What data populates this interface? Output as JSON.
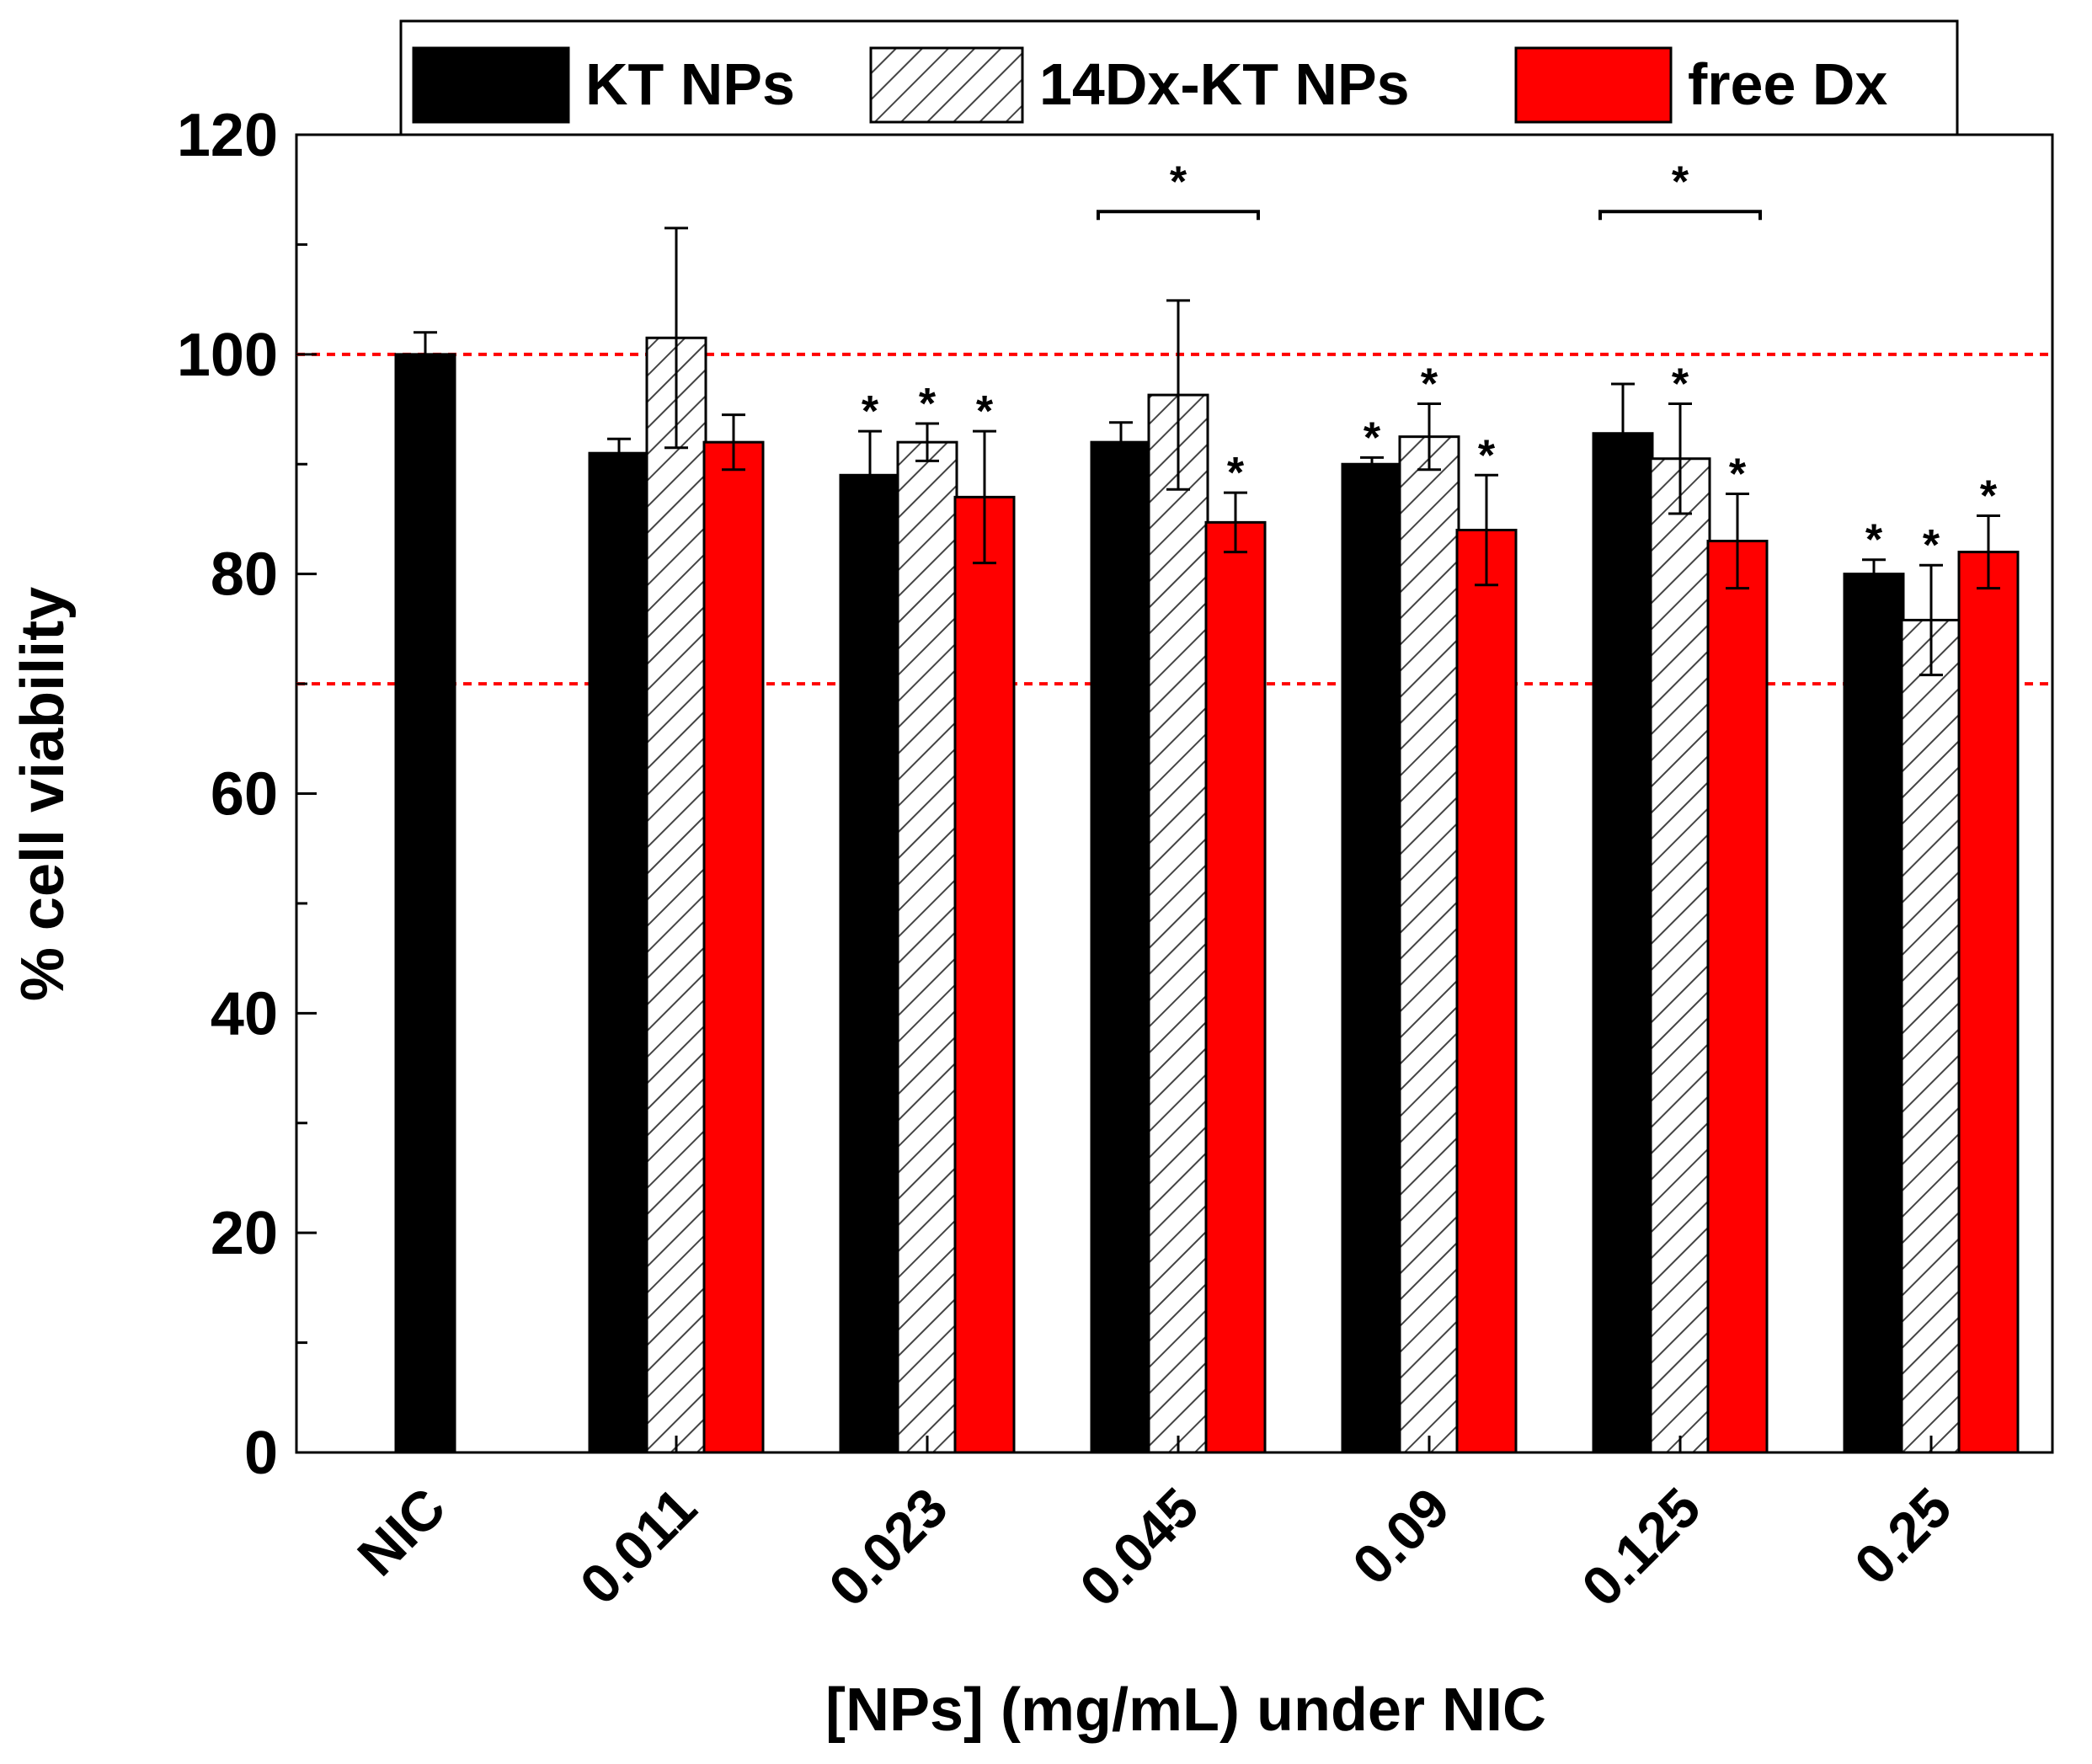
{
  "chart_data": {
    "type": "bar",
    "title": "",
    "xlabel": "[NPs] (mg/mL) under NIC",
    "ylabel": "% cell viability",
    "ylim": [
      0,
      120
    ],
    "yticks": [
      0,
      20,
      40,
      60,
      80,
      100,
      120
    ],
    "categories": [
      "NIC",
      "0.011",
      "0.023",
      "0.045",
      "0.09",
      "0.125",
      "0.25"
    ],
    "series": [
      {
        "name": "KT NPs",
        "color": "#000000",
        "pattern": "solid",
        "values": [
          100,
          91,
          89,
          92,
          90,
          92.8,
          80
        ],
        "errors": [
          2,
          1.3,
          4,
          1.8,
          0.6,
          4.5,
          1.3
        ],
        "significant": [
          false,
          false,
          true,
          false,
          true,
          false,
          true
        ]
      },
      {
        "name": "14Dx-KT NPs",
        "color": "#ffffff",
        "pattern": "hatched",
        "values": [
          null,
          101.5,
          92,
          96.3,
          92.5,
          90.5,
          75.8
        ],
        "errors": [
          null,
          10,
          1.7,
          8.6,
          3,
          5,
          5
        ],
        "significant": [
          false,
          false,
          true,
          false,
          true,
          true,
          true
        ]
      },
      {
        "name": "free Dx",
        "color": "#ff0000",
        "pattern": "solid",
        "values": [
          null,
          92,
          87,
          84.7,
          84,
          83,
          82
        ],
        "errors": [
          null,
          2.5,
          6,
          2.7,
          5,
          4.3,
          3.3
        ],
        "significant": [
          false,
          false,
          true,
          true,
          true,
          true,
          true
        ]
      }
    ],
    "reference_lines": [
      100,
      70
    ],
    "reference_line_color": "#ff0000",
    "significance_brackets": [
      {
        "category": "0.045",
        "from_series": "KT NPs",
        "to_series": "free Dx",
        "y": 113,
        "label": "*"
      },
      {
        "category": "0.125",
        "from_series": "KT NPs",
        "to_series": "free Dx",
        "y": 113,
        "label": "*"
      }
    ],
    "legend_position": "top-center"
  }
}
